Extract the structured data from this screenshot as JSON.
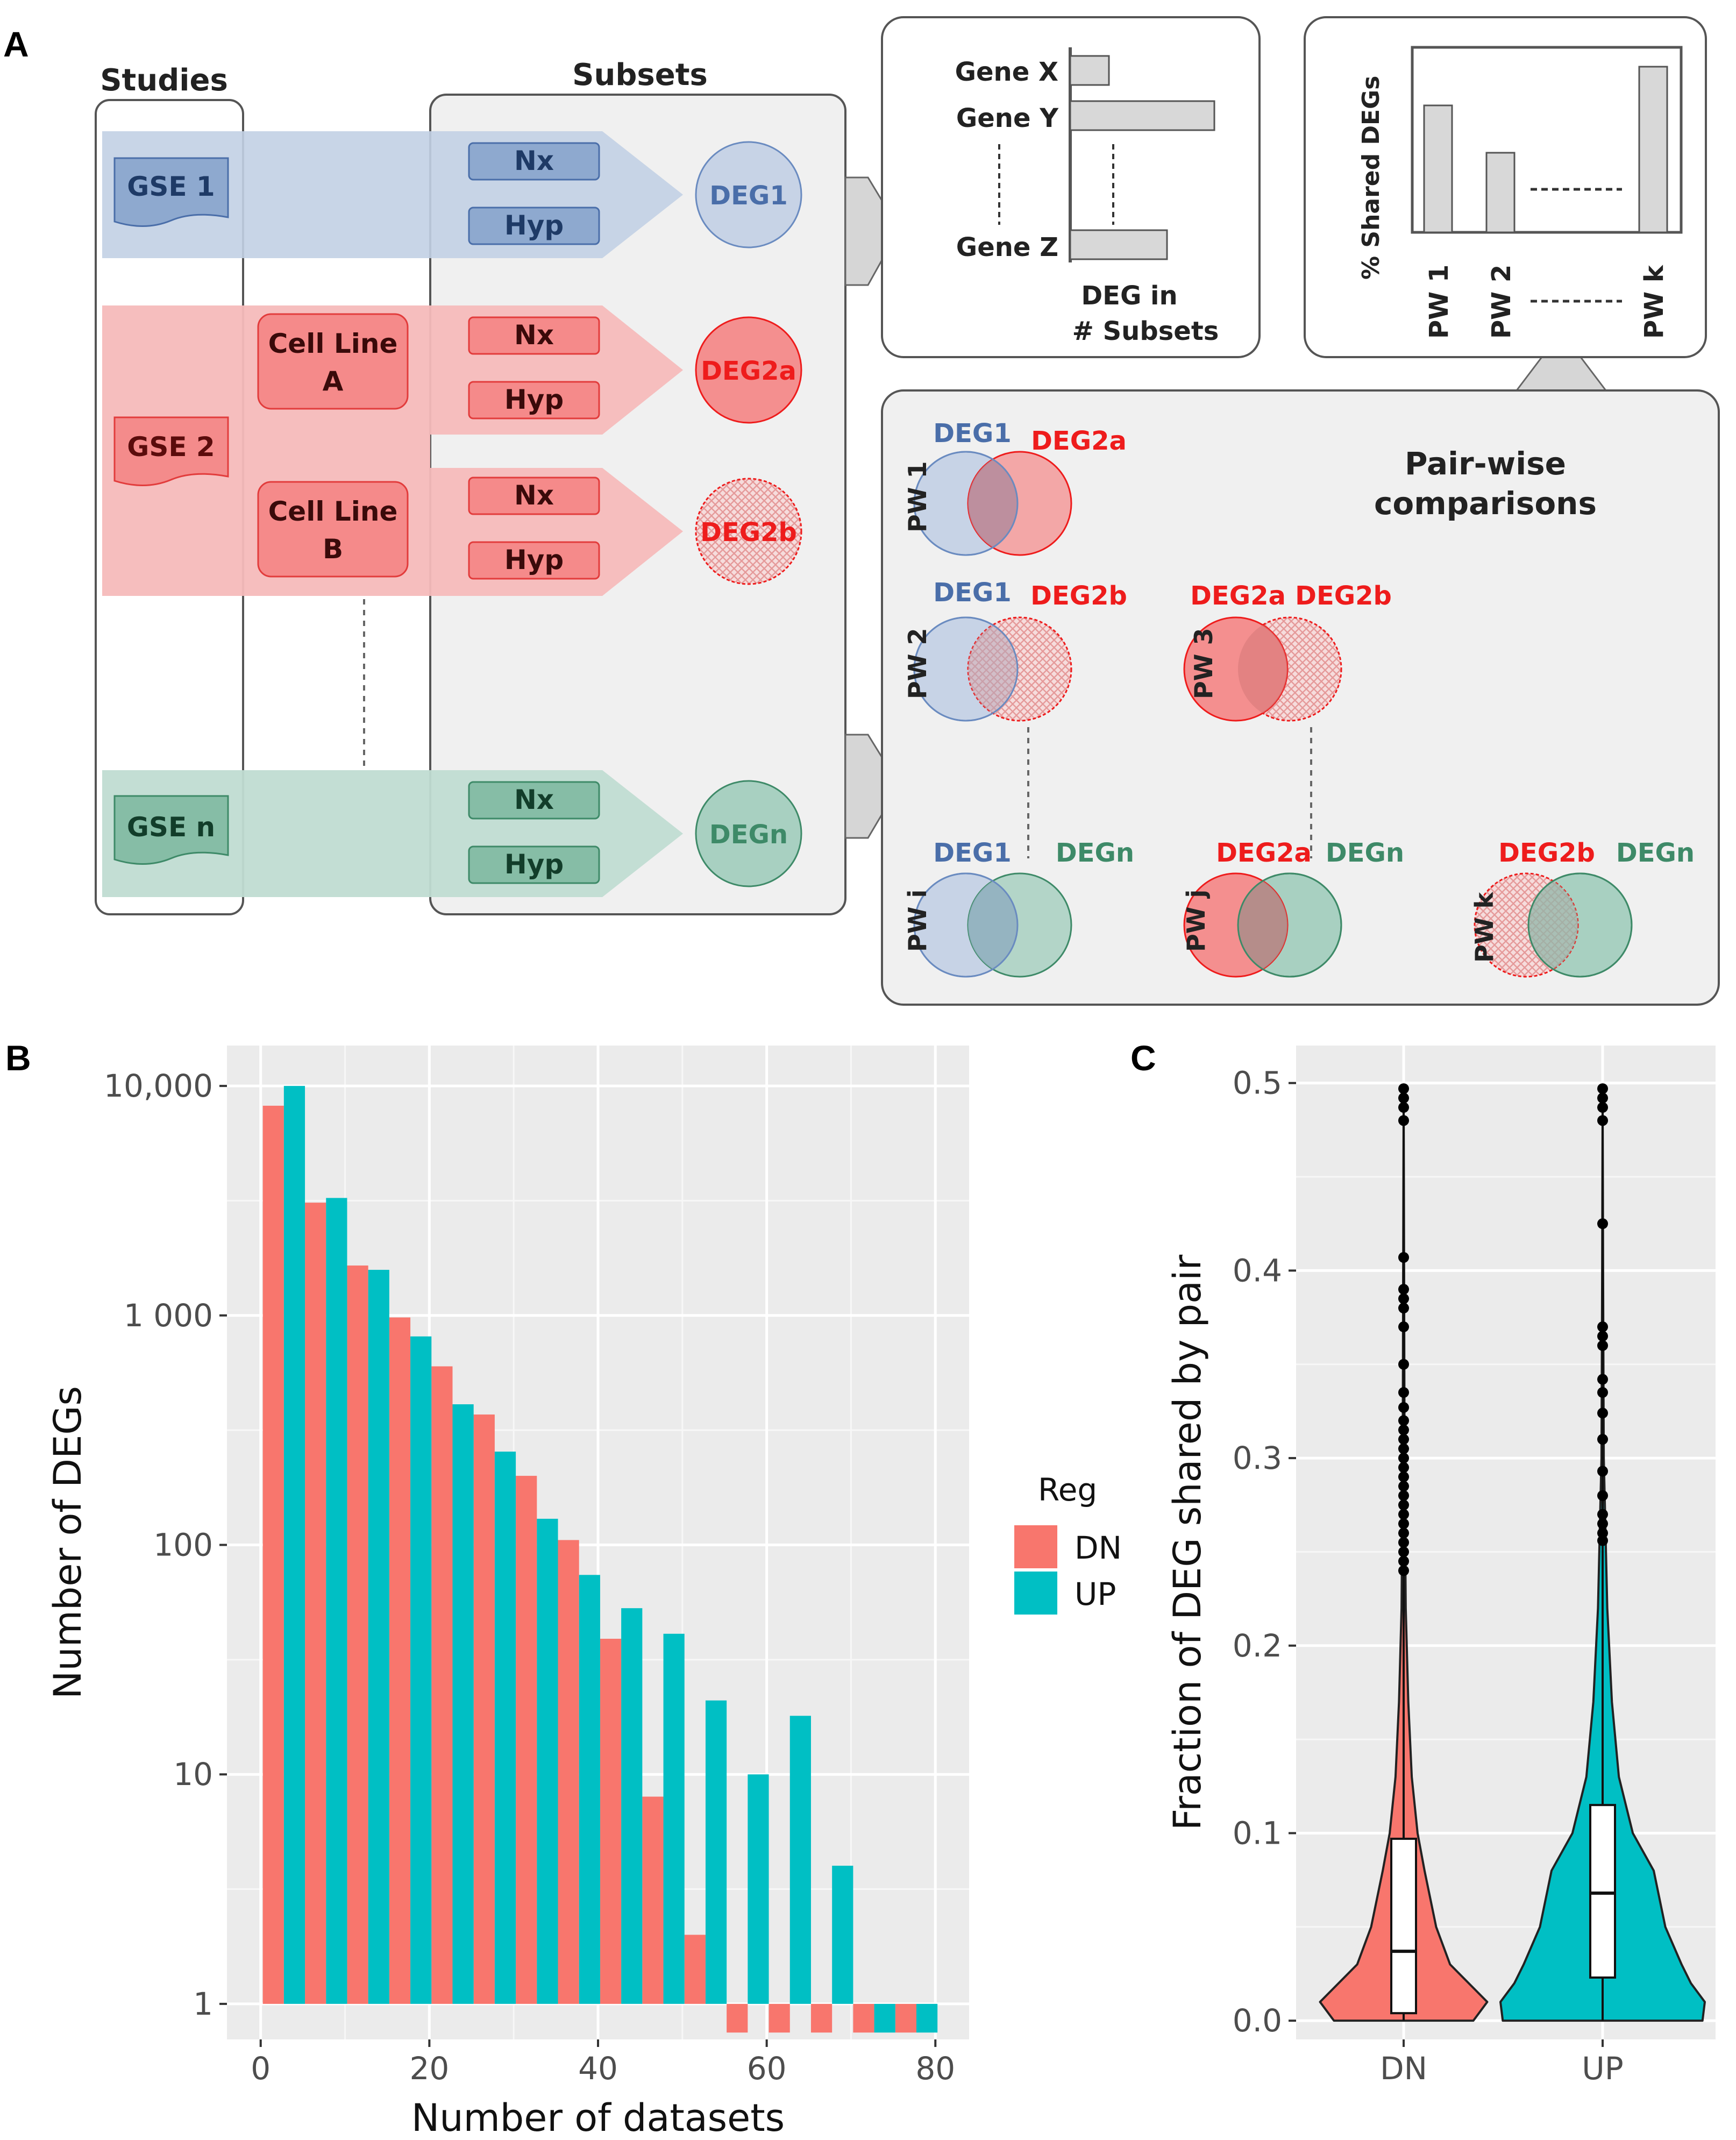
{
  "colors": {
    "dn": "#F8766D",
    "up": "#00BFC4",
    "blue": "#4A6EA9",
    "red": "#EE1C1C",
    "green": "#3E8A68",
    "panel_bg": "#EBEBEB",
    "grid": "#FFFFFF"
  },
  "panel_a": {
    "letter": "A",
    "studies_label": "Studies",
    "subsets_label": "Subsets",
    "gse1": "GSE 1",
    "gse2": "GSE 2",
    "gsen": "GSE n",
    "cell_line_a": [
      "Cell Line",
      "A"
    ],
    "cell_line_b": [
      "Cell Line",
      "B"
    ],
    "nx": "Nx",
    "hyp": "Hyp",
    "deg1": "DEG1",
    "deg2a": "DEG2a",
    "deg2b": "DEG2b",
    "degn": "DEGn",
    "gene_x": "Gene X",
    "gene_y": "Gene Y",
    "gene_z": "Gene Z",
    "deg_in": "DEG in",
    "n_subsets": "# Subsets",
    "pct_shared": "% Shared DEGs",
    "pw1": "PW 1",
    "pw2": "PW 2",
    "pwk": "PW k",
    "pairwise": [
      "Pair-wise",
      "comparisons"
    ],
    "venns": [
      {
        "pw": "PW 1",
        "left": "DEG1",
        "right": "DEG2a"
      },
      {
        "pw": "PW 2",
        "left": "DEG1",
        "right": "DEG2b"
      },
      {
        "pw": "PW 3",
        "left": "DEG2a",
        "right": "DEG2b"
      },
      {
        "pw": "PW i",
        "left": "DEG1",
        "right": "DEGn"
      },
      {
        "pw": "PW j",
        "left": "DEG2a",
        "right": "DEGn"
      },
      {
        "pw": "PW k",
        "left": "DEG2b",
        "right": "DEGn"
      }
    ]
  },
  "chart_data": [
    {
      "panel": "B",
      "type": "bar",
      "scale": "log10",
      "xlabel": "Number of datasets",
      "ylabel": "Number of DEGs",
      "xlim": [
        -4,
        84
      ],
      "xticks": [
        0,
        20,
        40,
        60,
        80
      ],
      "xtick_labels": [
        "0",
        "20",
        "40",
        "60",
        "80"
      ],
      "ylim": [
        0.7,
        15000
      ],
      "yticks": [
        1,
        10,
        100,
        1000,
        10000
      ],
      "ytick_labels": [
        "1",
        "10",
        "100",
        "1 000",
        "10,000"
      ],
      "baseline": 1,
      "legend": {
        "title": "Reg",
        "position": "right",
        "entries": [
          "DN",
          "UP"
        ]
      },
      "series": [
        {
          "name": "DN",
          "x": [
            1.5,
            6.5,
            11.5,
            16.5,
            21.5,
            26.5,
            31.5,
            36.5,
            41.5,
            46.5,
            51.5,
            56.5,
            61.5,
            66.5,
            71.5,
            76.5
          ],
          "values": [
            8200,
            3100,
            1650,
            980,
            600,
            370,
            200,
            105,
            39,
            8,
            2,
            0.75,
            0.75,
            0.75,
            0.75,
            0.75
          ]
        },
        {
          "name": "UP",
          "x": [
            4,
            9,
            14,
            19,
            24,
            29,
            34,
            39,
            44,
            49,
            54,
            59,
            64,
            69,
            74,
            79
          ],
          "values": [
            10000,
            3250,
            1580,
            810,
            410,
            255,
            130,
            74,
            53,
            41,
            21,
            10,
            18,
            4,
            0.75,
            0.75
          ]
        }
      ]
    },
    {
      "panel": "C",
      "type": "violin",
      "xlabel": "",
      "ylabel": "Fraction of DEG shared by pair",
      "ylim": [
        -0.01,
        0.52
      ],
      "yticks": [
        0.0,
        0.1,
        0.2,
        0.3,
        0.4,
        0.5
      ],
      "ytick_labels": [
        "0.0",
        "0.1",
        "0.2",
        "0.3",
        "0.4",
        "0.5"
      ],
      "categories": [
        "DN",
        "UP"
      ],
      "boxes": [
        {
          "name": "DN",
          "q1": 0.004,
          "median": 0.037,
          "q3": 0.097,
          "whisker_low": 0.0,
          "whisker_high": 0.235
        },
        {
          "name": "UP",
          "q1": 0.023,
          "median": 0.068,
          "q3": 0.115,
          "whisker_low": 0.0,
          "whisker_high": 0.255
        }
      ],
      "outliers": [
        {
          "name": "DN",
          "values": [
            0.24,
            0.245,
            0.25,
            0.255,
            0.26,
            0.265,
            0.27,
            0.275,
            0.28,
            0.285,
            0.29,
            0.295,
            0.3,
            0.305,
            0.31,
            0.315,
            0.32,
            0.327,
            0.335,
            0.35,
            0.37,
            0.38,
            0.385,
            0.39,
            0.407,
            0.48,
            0.487,
            0.492,
            0.497
          ]
        },
        {
          "name": "UP",
          "values": [
            0.256,
            0.26,
            0.265,
            0.27,
            0.28,
            0.293,
            0.31,
            0.324,
            0.335,
            0.342,
            0.36,
            0.365,
            0.37,
            0.425,
            0.48,
            0.487,
            0.492,
            0.497
          ]
        }
      ],
      "density_profile": [
        {
          "y": 0.0,
          "dn": 0.3,
          "up": 0.43
        },
        {
          "y": 0.01,
          "dn": 0.36,
          "up": 0.44
        },
        {
          "y": 0.02,
          "dn": 0.28,
          "up": 0.38
        },
        {
          "y": 0.03,
          "dn": 0.2,
          "up": 0.34
        },
        {
          "y": 0.05,
          "dn": 0.14,
          "up": 0.27
        },
        {
          "y": 0.08,
          "dn": 0.09,
          "up": 0.22
        },
        {
          "y": 0.1,
          "dn": 0.06,
          "up": 0.13
        },
        {
          "y": 0.13,
          "dn": 0.035,
          "up": 0.07
        },
        {
          "y": 0.17,
          "dn": 0.02,
          "up": 0.04
        },
        {
          "y": 0.22,
          "dn": 0.009,
          "up": 0.02
        },
        {
          "y": 0.3,
          "dn": 0.004,
          "up": 0.005
        },
        {
          "y": 0.4,
          "dn": 0.002,
          "up": 0.002
        },
        {
          "y": 0.5,
          "dn": 0.001,
          "up": 0.001
        }
      ]
    }
  ],
  "panel_b_letter": "B",
  "panel_c_letter": "C"
}
